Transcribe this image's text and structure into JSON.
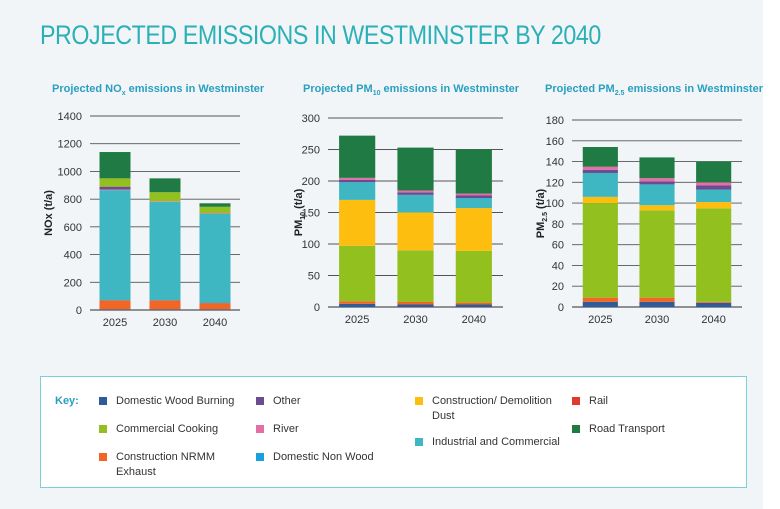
{
  "title": "PROJECTED EMISSIONS IN WESTMINSTER BY 2040",
  "colors": {
    "title": "#2cb0b8",
    "subtitle": "#2a9fc0",
    "Domestic Wood Burning": "#2e5b9a",
    "Commercial Cooking": "#92c01f",
    "Construction NRMM Exhaust": "#f26522",
    "Other": "#6a4c93",
    "River": "#e36fa4",
    "Domestic Non Wood": "#1aa0dc",
    "Construction/ Demolition Dust": "#fdbe10",
    "Industrial and Commercial": "#3fb7c2",
    "Rail": "#e2392b",
    "Road Transport": "#1f7a44"
  },
  "key": {
    "title": "Key:",
    "items": [
      {
        "name": "Domestic Wood Burning",
        "label": "Domestic Wood Burning"
      },
      {
        "name": "Other",
        "label": "Other"
      },
      {
        "name": "Construction/ Demolition Dust",
        "label": "Construction/ Demolition Dust"
      },
      {
        "name": "Rail",
        "label": "Rail"
      },
      {
        "name": "Commercial Cooking",
        "label": "Commercial Cooking"
      },
      {
        "name": "River",
        "label": "River"
      },
      {
        "name": "Industrial and Commercial",
        "label": "Industrial and Commercial"
      },
      {
        "name": "Road Transport",
        "label": "Road Transport"
      },
      {
        "name": "Construction NRMM Exhaust",
        "label": "Construction NRMM Exhaust"
      },
      {
        "name": "Domestic Non Wood",
        "label": "Domestic Non Wood"
      }
    ]
  },
  "chart_data": [
    {
      "id": "nox",
      "type": "bar",
      "stacked": true,
      "title": "Projected NO",
      "title_sub": "x",
      "title_rest": " emissions  in Westminster",
      "ylabel": "NOx (t/a)",
      "ylabel_sub": "",
      "ylabel_rest": "",
      "ylim": [
        0,
        1400
      ],
      "yticks": [
        0,
        200,
        400,
        600,
        800,
        1000,
        1200,
        1400
      ],
      "categories": [
        "2025",
        "2030",
        "2040"
      ],
      "series": [
        {
          "name": "Domestic Wood Burning",
          "values": [
            5,
            5,
            5
          ]
        },
        {
          "name": "Construction NRMM Exhaust",
          "values": [
            65,
            65,
            45
          ]
        },
        {
          "name": "Domestic Non Wood",
          "values": [
            5,
            5,
            5
          ]
        },
        {
          "name": "Industrial and Commercial",
          "values": [
            790,
            705,
            640
          ]
        },
        {
          "name": "River",
          "values": [
            5,
            5,
            5
          ]
        },
        {
          "name": "Other",
          "values": [
            20,
            0,
            0
          ]
        },
        {
          "name": "Commercial Cooking",
          "values": [
            60,
            65,
            45
          ]
        },
        {
          "name": "Road Transport",
          "values": [
            190,
            100,
            25
          ]
        }
      ]
    },
    {
      "id": "pm10",
      "type": "bar",
      "stacked": true,
      "title": "Projected PM",
      "title_sub": "10",
      "title_rest": " emissions  in Westminster",
      "ylabel": "PM",
      "ylabel_sub": "10",
      "ylabel_rest": " (t/a)",
      "ylim": [
        0,
        300
      ],
      "yticks": [
        0,
        50,
        100,
        150,
        200,
        250,
        300
      ],
      "categories": [
        "2025",
        "2030",
        "2040"
      ],
      "series": [
        {
          "name": "Domestic Wood Burning",
          "values": [
            5,
            4,
            4
          ]
        },
        {
          "name": "Construction NRMM Exhaust",
          "values": [
            4,
            4,
            3
          ]
        },
        {
          "name": "Commercial Cooking",
          "values": [
            88,
            82,
            82
          ]
        },
        {
          "name": "Construction/ Demolition Dust",
          "values": [
            73,
            60,
            68
          ]
        },
        {
          "name": "Industrial and Commercial",
          "values": [
            28,
            28,
            16
          ]
        },
        {
          "name": "Other",
          "values": [
            4,
            4,
            4
          ]
        },
        {
          "name": "River",
          "values": [
            3,
            3,
            3
          ]
        },
        {
          "name": "Road Transport",
          "values": [
            67,
            68,
            70
          ]
        }
      ]
    },
    {
      "id": "pm25",
      "type": "bar",
      "stacked": true,
      "title": "Projected PM",
      "title_sub": "2.5",
      "title_rest": " emissions  in Westminster",
      "ylabel": "PM",
      "ylabel_sub": "2.5",
      "ylabel_rest": " (t/a)",
      "ylim": [
        0,
        180
      ],
      "yticks": [
        0,
        20,
        40,
        60,
        80,
        100,
        120,
        140,
        160,
        180
      ],
      "categories": [
        "2025",
        "2030",
        "2040"
      ],
      "series": [
        {
          "name": "Domestic Wood Burning",
          "values": [
            5,
            5,
            4
          ]
        },
        {
          "name": "Construction NRMM Exhaust",
          "values": [
            4,
            4,
            1
          ]
        },
        {
          "name": "Commercial Cooking",
          "values": [
            91,
            84,
            90
          ]
        },
        {
          "name": "Construction/ Demolition Dust",
          "values": [
            6,
            5,
            6
          ]
        },
        {
          "name": "Industrial and Commercial",
          "values": [
            23,
            20,
            12
          ]
        },
        {
          "name": "Other",
          "values": [
            3,
            3,
            4
          ]
        },
        {
          "name": "River",
          "values": [
            3,
            3,
            3
          ]
        },
        {
          "name": "Road Transport",
          "values": [
            19,
            20,
            20
          ]
        }
      ]
    }
  ]
}
